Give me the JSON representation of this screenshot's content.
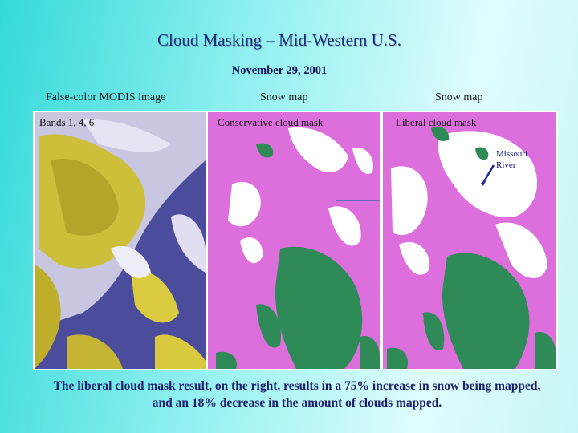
{
  "title": "Cloud Masking – Mid-Western U.S.",
  "date": "November 29, 2001",
  "columns": [
    {
      "header": "False-color MODIS image",
      "label": "Bands 1, 4, 6"
    },
    {
      "header": "Snow map",
      "label": "Conservative cloud mask"
    },
    {
      "header": "Snow map",
      "label": "Liberal cloud mask"
    }
  ],
  "annotation": {
    "line1": "Missouri",
    "line2": "River"
  },
  "caption": "The liberal cloud mask result, on the right, results in a 75% increase in snow being mapped, and an 18% decrease in the amount of clouds mapped.",
  "colors": {
    "cloud_mask": "#dd6fdd",
    "snow": "#ffffff",
    "land": "#2e8b57",
    "false_color_cloud": "#d6c83a",
    "false_color_ground": "#3a3a99"
  }
}
